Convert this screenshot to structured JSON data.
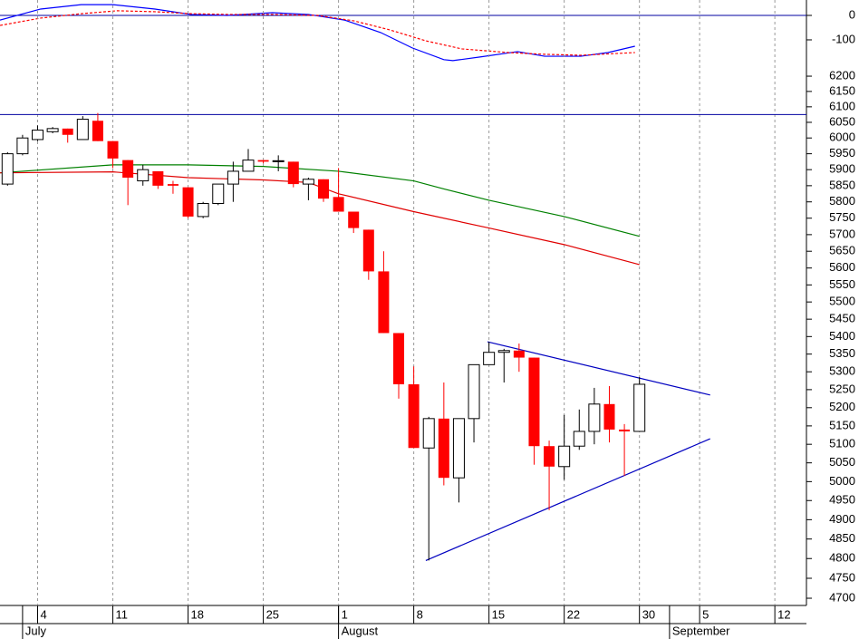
{
  "chart_data": [
    {
      "type": "line",
      "xlim": [
        -0.5,
        53.1
      ],
      "ylim": [
        -215,
        63
      ],
      "yticks": [
        0,
        -100
      ],
      "hlines": [
        0
      ],
      "hline_color": "#0000a0",
      "series": [
        {
          "color": "#0000ff",
          "dash": false,
          "x": [
            -0.5,
            2.2,
            4.9,
            7,
            9.8,
            12.2,
            14.6,
            17.6,
            20,
            22.4,
            24.8,
            26.9,
            29,
            29.6,
            31.4,
            33.9,
            35.7,
            38.1,
            39.9,
            41.7
          ],
          "values": [
            -19,
            26,
            44,
            44,
            26,
            4,
            0,
            11,
            4,
            -19,
            -70,
            -133,
            -181,
            -185,
            -170,
            -148,
            -167,
            -167,
            -152,
            -126
          ]
        },
        {
          "color": "#ff0000",
          "dash": true,
          "x": [
            -0.5,
            2.2,
            4.9,
            7.3,
            9.8,
            12.2,
            14.6,
            17.6,
            20.6,
            23,
            25.4,
            27.8,
            30.2,
            33.3,
            35.7,
            38.1,
            41.7
          ],
          "values": [
            -41,
            -11,
            7,
            19,
            15,
            7,
            4,
            4,
            0,
            -22,
            -59,
            -104,
            -137,
            -152,
            -159,
            -163,
            -152
          ]
        }
      ]
    },
    {
      "type": "candlestick",
      "log": true,
      "xlim": [
        -0.5,
        53.1
      ],
      "ylim": [
        4682,
        6227
      ],
      "yticks": [
        4700,
        4750,
        4800,
        4850,
        4900,
        4950,
        5000,
        5050,
        5100,
        5150,
        5200,
        5250,
        5300,
        5350,
        5400,
        5450,
        5500,
        5550,
        5600,
        5650,
        5700,
        5750,
        5800,
        5850,
        5900,
        5950,
        6000,
        6050,
        6100,
        6150,
        6200
      ],
      "xticks": [
        {
          "value": 2,
          "label": "4"
        },
        {
          "value": 7,
          "label": "11"
        },
        {
          "value": 12,
          "label": "18"
        },
        {
          "value": 17,
          "label": "25"
        },
        {
          "value": 22,
          "label": "1"
        },
        {
          "value": 27,
          "label": "8"
        },
        {
          "value": 32,
          "label": "15"
        },
        {
          "value": 37,
          "label": "22"
        },
        {
          "value": 42,
          "label": "30"
        },
        {
          "value": 46,
          "label": "5"
        },
        {
          "value": 51,
          "label": "12"
        }
      ],
      "months": [
        {
          "value": 1,
          "label": "July"
        },
        {
          "value": 22,
          "label": "August"
        },
        {
          "value": 44,
          "label": "September"
        }
      ],
      "grid": true,
      "up_color": "#ffffff",
      "down_color": "#ff0000",
      "hlines": [
        6075
      ],
      "hline_color": "#0000a0",
      "x": [
        0,
        1,
        2,
        3,
        4,
        5,
        6,
        7,
        8,
        9,
        10,
        11,
        12,
        13,
        14,
        15,
        16,
        17,
        18,
        19,
        20,
        21,
        22,
        23,
        24,
        25,
        26,
        27,
        28,
        29,
        30,
        31,
        32,
        33,
        34,
        35,
        36,
        37,
        38,
        39,
        40,
        41,
        42
      ],
      "open": [
        5855,
        5950,
        5995,
        6020,
        6030,
        5995,
        6055,
        5990,
        5930,
        5865,
        5895,
        5855,
        5845,
        5755,
        5795,
        5855,
        5895,
        5930,
        5925,
        5925,
        5855,
        5870,
        5815,
        5770,
        5715,
        5590,
        5410,
        5265,
        5090,
        5170,
        5010,
        5170,
        5320,
        5355,
        5360,
        5340,
        5095,
        5040,
        5095,
        5135,
        5210,
        5140,
        5135
      ],
      "high": [
        5955,
        6010,
        6040,
        6035,
        6030,
        6070,
        6080,
        5990,
        5930,
        5915,
        5895,
        5865,
        5845,
        5800,
        5855,
        5925,
        5965,
        5930,
        5945,
        5925,
        5875,
        5870,
        5905,
        5770,
        5715,
        5650,
        5410,
        5315,
        5175,
        5270,
        5170,
        5320,
        5385,
        5365,
        5380,
        5340,
        5110,
        5180,
        5195,
        5255,
        5260,
        5155,
        5285
      ],
      "low": [
        5850,
        5945,
        5990,
        6015,
        5985,
        5995,
        5990,
        5905,
        5790,
        5850,
        5840,
        5825,
        5750,
        5750,
        5790,
        5800,
        5895,
        5920,
        5895,
        5845,
        5805,
        5800,
        5770,
        5705,
        5565,
        5410,
        5225,
        5090,
        4795,
        4990,
        4945,
        5105,
        5320,
        5270,
        5300,
        5045,
        4925,
        5005,
        5085,
        5100,
        5105,
        5015,
        5135
      ],
      "close": [
        5950,
        6000,
        6025,
        6030,
        6010,
        6060,
        5990,
        5935,
        5875,
        5900,
        5850,
        5850,
        5755,
        5795,
        5855,
        5895,
        5930,
        5925,
        5928,
        5855,
        5870,
        5810,
        5770,
        5720,
        5590,
        5410,
        5265,
        5090,
        5170,
        5010,
        5170,
        5320,
        5355,
        5360,
        5340,
        5095,
        5040,
        5095,
        5135,
        5210,
        5140,
        5135,
        5265
      ],
      "lines": [
        {
          "color": "#008000",
          "x": [
            -0.5,
            7,
            12,
            17,
            22,
            27,
            29,
            32,
            37,
            42
          ],
          "values": [
            5890,
            5915,
            5915,
            5910,
            5895,
            5865,
            5840,
            5805,
            5755,
            5695
          ]
        },
        {
          "color": "#e00000",
          "x": [
            -0.5,
            7,
            12,
            17,
            20,
            22,
            27,
            32,
            37,
            42
          ],
          "values": [
            5890,
            5893,
            5875,
            5868,
            5860,
            5825,
            5770,
            5720,
            5670,
            5610
          ]
        },
        {
          "color": "#0000c0",
          "x": [
            31.9,
            46.7
          ],
          "values": [
            5385,
            5235
          ]
        },
        {
          "color": "#0000c0",
          "x": [
            27.8,
            46.7
          ],
          "values": [
            4795,
            5115
          ]
        }
      ]
    }
  ]
}
